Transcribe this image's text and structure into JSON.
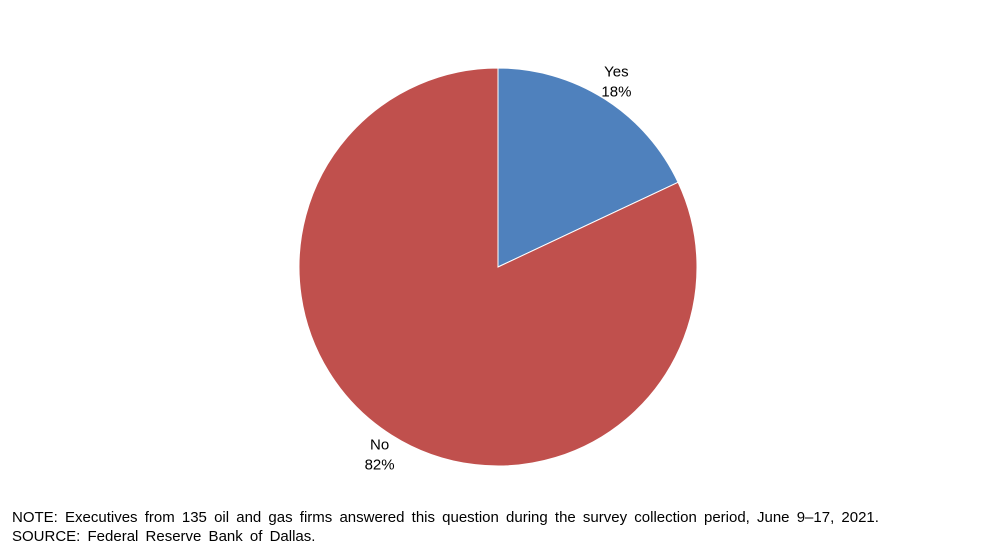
{
  "chart_data": {
    "type": "pie",
    "slices": [
      {
        "label": "Yes",
        "value": 18,
        "value_label": "18%",
        "color": "#4f81bd"
      },
      {
        "label": "No",
        "value": 82,
        "value_label": "82%",
        "color": "#c0504d"
      }
    ],
    "start_angle_deg": 0,
    "direction": "clockwise",
    "legend": "none"
  },
  "notes": {
    "note": "NOTE: Executives from 135 oil and gas firms answered this question during the survey collection period, June 9–17, 2021.",
    "source": "SOURCE: Federal Reserve Bank of Dallas."
  }
}
